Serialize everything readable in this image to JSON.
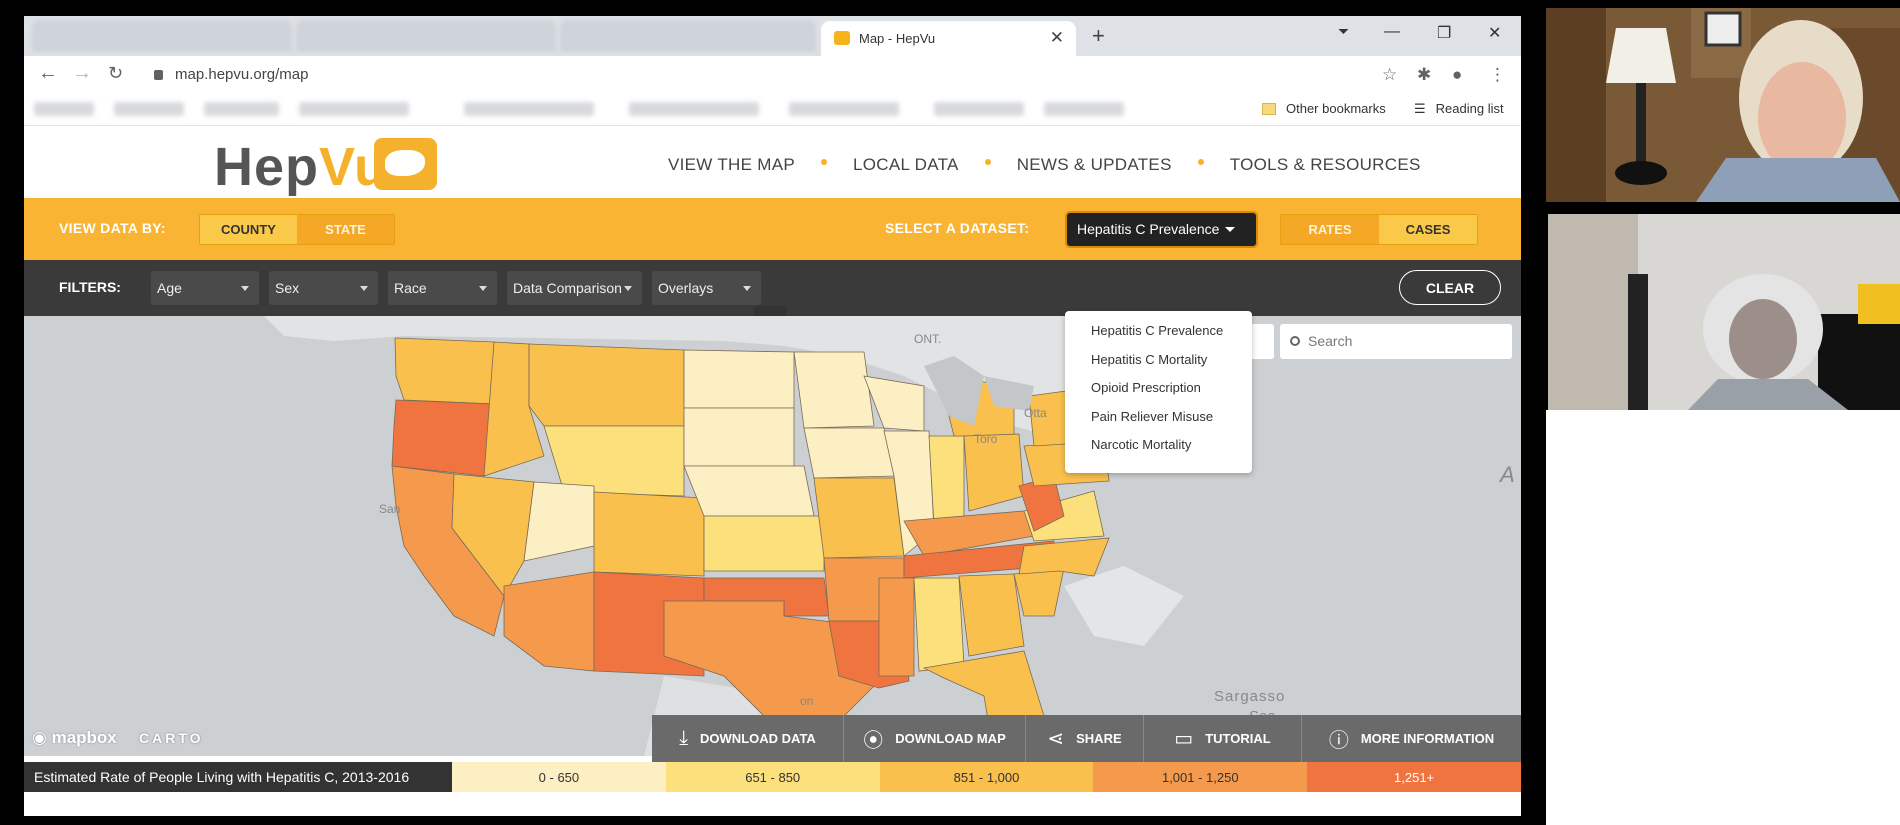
{
  "browser": {
    "tab_title": "Map - HepVu",
    "url": "map.hepvu.org/map",
    "bookmarks": {
      "other": "Other bookmarks",
      "reading_list": "Reading list"
    }
  },
  "site": {
    "logo": {
      "part1": "Hep",
      "part2": "Vu"
    },
    "nav": [
      "VIEW THE MAP",
      "LOCAL DATA",
      "NEWS & UPDATES",
      "TOOLS & RESOURCES"
    ],
    "view_by_label": "VIEW DATA BY:",
    "view_by": {
      "county": "COUNTY",
      "state": "STATE"
    },
    "dataset_label": "SELECT A DATASET:",
    "dataset_selected": "Hepatitis C Prevalence",
    "measure": {
      "rates": "RATES",
      "cases": "CASES"
    },
    "filters_label": "FILTERS:",
    "filters": [
      "Age",
      "Sex",
      "Race",
      "Data Comparison",
      "Overlays"
    ],
    "clear": "CLEAR",
    "dropdown_options": [
      "Hepatitis C Prevalence",
      "Hepatitis C Mortality",
      "Opioid Prescription",
      "Pain Reliever Misuse",
      "Narcotic Mortality"
    ],
    "map": {
      "search_placeholder": "Search",
      "labels": {
        "ont": "ONT.",
        "otta": "Otta",
        "toro": "Toro",
        "san": "San",
        "sargasso": "Sargasso",
        "sea": "Sea",
        "a": "A",
        "on": "on"
      },
      "attribution": {
        "mapbox": "mapbox",
        "carto": "CARTO"
      }
    },
    "actions": [
      "DOWNLOAD DATA",
      "DOWNLOAD MAP",
      "SHARE",
      "TUTORIAL",
      "MORE INFORMATION"
    ],
    "legend": {
      "title": "Estimated Rate of People Living with Hepatitis C, 2013-2016",
      "bins": [
        {
          "label": "0 - 650",
          "color": "#fdefc4"
        },
        {
          "label": "651 - 850",
          "color": "#fbe07c"
        },
        {
          "label": "851 - 1,000",
          "color": "#f9c04e"
        },
        {
          "label": "1,001 - 1,250",
          "color": "#f59a4c"
        },
        {
          "label": "1,251+",
          "color": "#ef7440"
        }
      ]
    }
  }
}
